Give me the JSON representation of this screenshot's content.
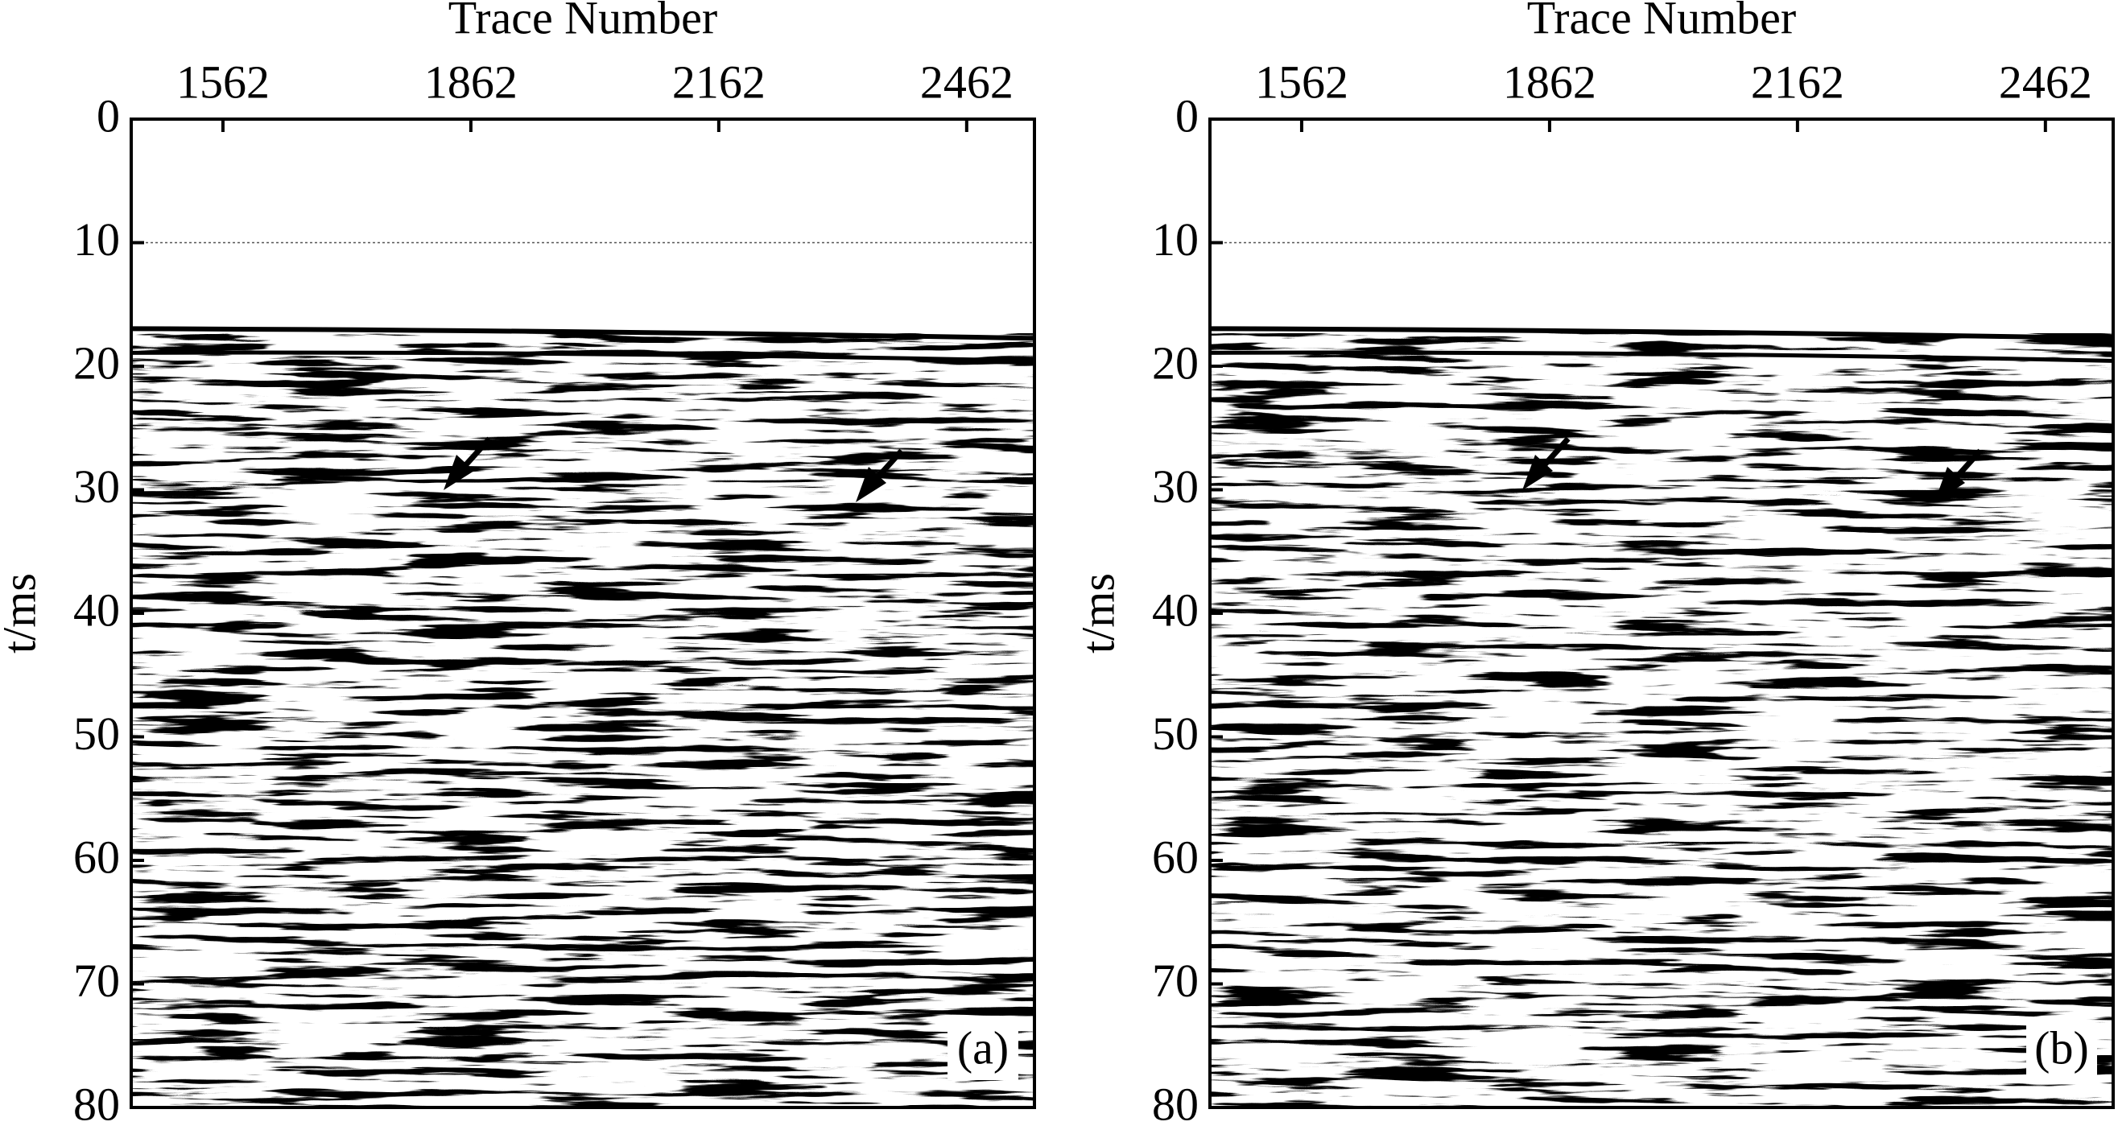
{
  "chart_data": [
    {
      "type": "seismic",
      "xlabel": "Trace Number",
      "ylabel": "t/ms",
      "xlim": [
        1451,
        2544
      ],
      "xticks": [
        1562,
        1862,
        2162,
        2462
      ],
      "ylim": [
        0,
        80
      ],
      "yticks": [
        0,
        10,
        20,
        30,
        40,
        50,
        60,
        70,
        80
      ],
      "y_inverted": true,
      "hline": 10,
      "panel_label": "(a)"
    },
    {
      "type": "seismic",
      "xlabel": "Trace Number",
      "ylabel": "t/ms",
      "xlim": [
        1451,
        2544
      ],
      "xticks": [
        1562,
        1862,
        2162,
        2462
      ],
      "ylim": [
        0,
        80
      ],
      "yticks": [
        0,
        10,
        20,
        30,
        40,
        50,
        60,
        70,
        80
      ],
      "y_inverted": true,
      "hline": 10,
      "panel_label": "(b)"
    }
  ]
}
